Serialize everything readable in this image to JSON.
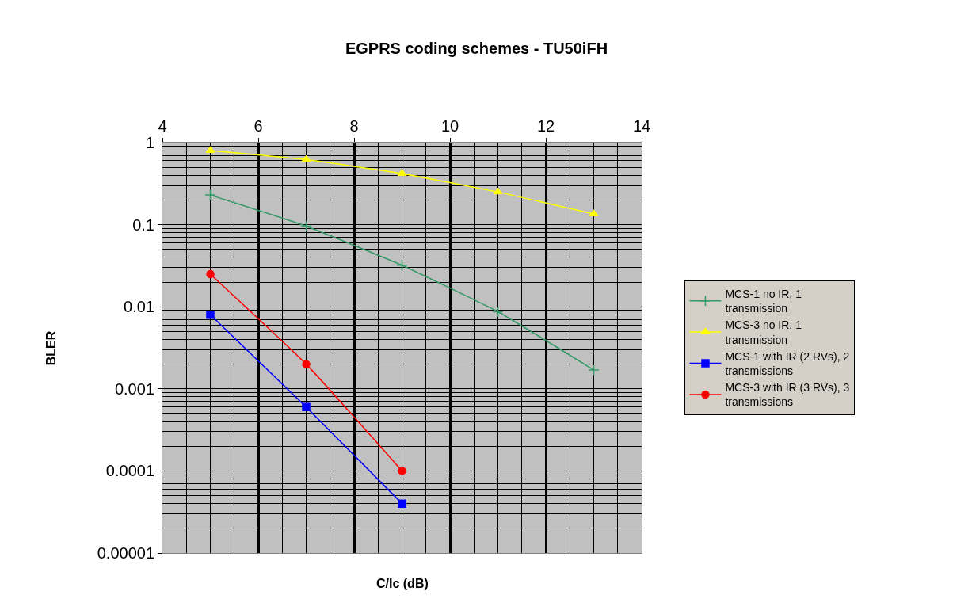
{
  "chart_data": {
    "type": "line",
    "title": "EGPRS coding schemes - TU50iFH",
    "xlabel": "C/Ic (dB)",
    "ylabel": "BLER",
    "log": "y",
    "grid": true,
    "legend": "right",
    "xlim": [
      4,
      14
    ],
    "xticks": [
      4,
      6,
      8,
      10,
      12,
      14
    ],
    "ylim": [
      1e-05,
      1
    ],
    "yticks": [
      {
        "value": 1,
        "label": "1"
      },
      {
        "value": 0.1,
        "label": "0.1"
      },
      {
        "value": 0.01,
        "label": "0.01"
      },
      {
        "value": 0.001,
        "label": "0.001"
      },
      {
        "value": 0.0001,
        "label": "0.0001"
      },
      {
        "value": 1e-05,
        "label": "0.00001"
      }
    ],
    "series": [
      {
        "name": "MCS-1 no IR, 1 transmission",
        "color": "#339966",
        "marker": "cross",
        "x": [
          5,
          7,
          9,
          11,
          13
        ],
        "values": [
          0.23,
          0.096,
          0.032,
          0.0087,
          0.0017
        ]
      },
      {
        "name": "MCS-3 no IR, 1 transmission",
        "color": "#ffff00",
        "marker": "triangle",
        "x": [
          5,
          7,
          9,
          11,
          13
        ],
        "values": [
          0.8,
          0.62,
          0.42,
          0.25,
          0.135
        ]
      },
      {
        "name": "MCS-1 with IR (2 RVs), 2 transmissions",
        "color": "#0000ff",
        "marker": "square",
        "x": [
          5,
          7,
          9
        ],
        "values": [
          0.008,
          0.0006,
          4e-05
        ]
      },
      {
        "name": "MCS-3 with IR (3 RVs), 3 transmissions",
        "color": "#ff0000",
        "marker": "circle",
        "x": [
          5,
          7,
          9
        ],
        "values": [
          0.025,
          0.002,
          0.0001
        ]
      }
    ]
  }
}
